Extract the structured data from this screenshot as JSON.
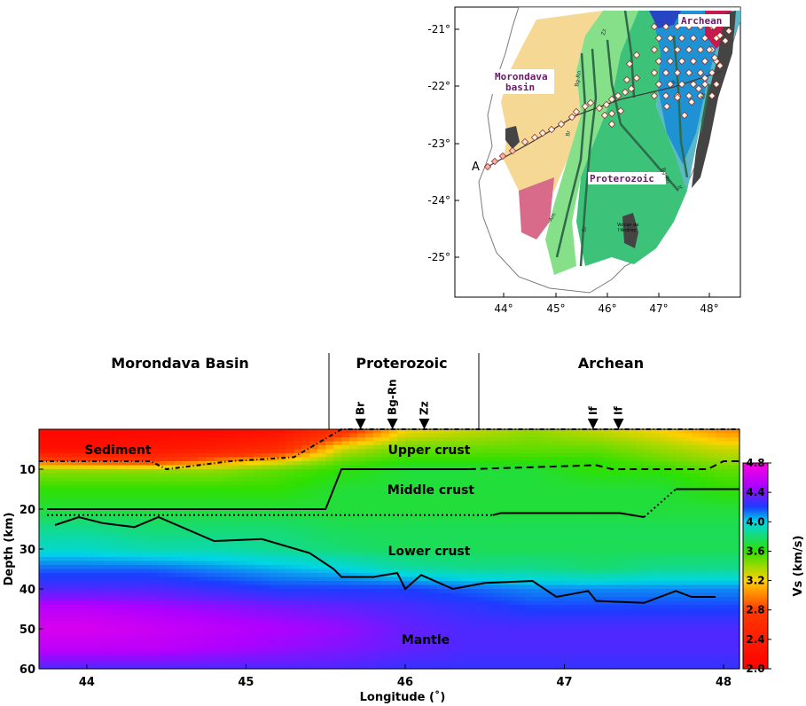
{
  "map": {
    "lat_ticks": [
      "-21°",
      "-22°",
      "-23°",
      "-24°",
      "-25°"
    ],
    "lon_ticks": [
      "44°",
      "45°",
      "46°",
      "47°",
      "48°"
    ],
    "labels": {
      "archean": "Archean",
      "morondava_1": "Morondava",
      "morondava_2": "basin",
      "proterozoic": "Proterozoic",
      "point_a": "A",
      "volcano_1": "Volcan de",
      "volcano_2": "l'Androy"
    },
    "fault_labels": [
      "Bg-Rn",
      "Zz",
      "Br",
      "If",
      "Zz",
      "Bg-Rn",
      "If",
      "Br",
      "Am"
    ]
  },
  "section": {
    "region_labels": [
      "Morondava Basin",
      "Proterozoic",
      "Archean"
    ],
    "fault_markers": [
      "Br",
      "Bg-Rn",
      "Zz",
      "If",
      "If"
    ],
    "layer_labels": {
      "sediment": "Sediment",
      "upper": "Upper crust",
      "middle": "Middle crust",
      "lower": "Lower crust",
      "mantle": "Mantle"
    }
  },
  "chart_data": {
    "type": "heatmap",
    "xlabel": "Longitude (˚)",
    "ylabel": "Depth (km)",
    "xlim": [
      43.7,
      48.1
    ],
    "ylim": [
      60,
      0
    ],
    "x_ticks": [
      "44",
      "45",
      "46",
      "47",
      "48"
    ],
    "y_ticks": [
      "10",
      "20",
      "30",
      "40",
      "50",
      "60"
    ],
    "colorbar": {
      "label": "Vs (km/s)",
      "range": [
        2.0,
        4.8
      ],
      "ticks": [
        "2.0",
        "2.4",
        "2.8",
        "3.2",
        "3.6",
        "4.0",
        "4.4",
        "4.8"
      ],
      "stops": [
        {
          "v": 2.0,
          "color": "#ff0000"
        },
        {
          "v": 2.8,
          "color": "#ff3a00"
        },
        {
          "v": 3.2,
          "color": "#ffd200"
        },
        {
          "v": 3.6,
          "color": "#2ee000"
        },
        {
          "v": 4.0,
          "color": "#00d6e6"
        },
        {
          "v": 4.2,
          "color": "#1b3dff"
        },
        {
          "v": 4.5,
          "color": "#b000ff"
        },
        {
          "v": 4.8,
          "color": "#ff00dd"
        }
      ]
    },
    "interfaces": {
      "sediment_base": [
        [
          43.7,
          8
        ],
        [
          44.4,
          8
        ],
        [
          44.5,
          10
        ],
        [
          44.9,
          8
        ],
        [
          45.3,
          7
        ],
        [
          45.6,
          0
        ],
        [
          48.1,
          0
        ]
      ],
      "upper_middle": [
        [
          43.75,
          20
        ],
        [
          45.5,
          20
        ],
        [
          45.6,
          10
        ],
        [
          46.4,
          10
        ],
        [
          47.2,
          9
        ],
        [
          47.3,
          10
        ],
        [
          47.9,
          10
        ],
        [
          48.0,
          8
        ],
        [
          48.1,
          8
        ]
      ],
      "middle_lower": [
        [
          43.75,
          21.5
        ],
        [
          46.55,
          21.5
        ],
        [
          46.6,
          21
        ],
        [
          47.35,
          21
        ],
        [
          47.5,
          22
        ],
        [
          47.7,
          15
        ],
        [
          48.1,
          15
        ]
      ],
      "moho": [
        [
          43.8,
          24
        ],
        [
          43.95,
          22
        ],
        [
          44.1,
          23.5
        ],
        [
          44.3,
          24.5
        ],
        [
          44.45,
          22
        ],
        [
          44.8,
          28
        ],
        [
          45.1,
          27.5
        ],
        [
          45.4,
          31
        ],
        [
          45.55,
          35
        ],
        [
          45.6,
          37
        ],
        [
          45.8,
          37
        ],
        [
          45.95,
          36
        ],
        [
          46.0,
          40
        ],
        [
          46.1,
          36.5
        ],
        [
          46.3,
          40
        ],
        [
          46.5,
          38.5
        ],
        [
          46.8,
          38
        ],
        [
          46.95,
          42
        ],
        [
          47.15,
          40.5
        ],
        [
          47.2,
          43
        ],
        [
          47.5,
          43.5
        ],
        [
          47.7,
          40.5
        ],
        [
          47.8,
          42
        ],
        [
          47.95,
          42
        ]
      ]
    },
    "profile": {
      "lon": [
        43.7,
        44.0,
        44.4,
        44.8,
        45.2,
        45.6,
        46.0,
        46.4,
        46.8,
        47.2,
        47.6,
        48.0
      ],
      "rows": [
        {
          "depth": 0,
          "vs": [
            2.1,
            2.1,
            2.1,
            2.1,
            2.2,
            2.6,
            3.2,
            3.3,
            3.4,
            3.3,
            3.2,
            3.0
          ]
        },
        {
          "depth": 5,
          "vs": [
            2.2,
            2.2,
            2.3,
            2.4,
            2.6,
            3.3,
            3.5,
            3.5,
            3.5,
            3.5,
            3.4,
            3.3
          ]
        },
        {
          "depth": 8,
          "vs": [
            2.9,
            2.8,
            2.7,
            3.0,
            3.2,
            3.5,
            3.6,
            3.6,
            3.6,
            3.6,
            3.5,
            3.4
          ]
        },
        {
          "depth": 10,
          "vs": [
            3.4,
            3.4,
            3.4,
            3.4,
            3.5,
            3.6,
            3.7,
            3.7,
            3.7,
            3.6,
            3.6,
            3.5
          ]
        },
        {
          "depth": 15,
          "vs": [
            3.6,
            3.6,
            3.6,
            3.6,
            3.6,
            3.7,
            3.7,
            3.7,
            3.7,
            3.7,
            3.7,
            3.6
          ]
        },
        {
          "depth": 20,
          "vs": [
            3.7,
            3.7,
            3.7,
            3.7,
            3.7,
            3.7,
            3.7,
            3.7,
            3.7,
            3.7,
            3.7,
            3.7
          ]
        },
        {
          "depth": 25,
          "vs": [
            3.85,
            3.85,
            3.8,
            3.8,
            3.8,
            3.75,
            3.75,
            3.75,
            3.75,
            3.75,
            3.75,
            3.75
          ]
        },
        {
          "depth": 30,
          "vs": [
            3.95,
            3.95,
            3.9,
            3.9,
            3.85,
            3.8,
            3.75,
            3.75,
            3.75,
            3.75,
            3.75,
            3.75
          ]
        },
        {
          "depth": 35,
          "vs": [
            4.15,
            4.15,
            4.15,
            4.1,
            4.05,
            4.0,
            3.9,
            3.85,
            3.85,
            3.8,
            3.85,
            3.85
          ]
        },
        {
          "depth": 40,
          "vs": [
            4.3,
            4.3,
            4.3,
            4.25,
            4.2,
            4.2,
            4.2,
            4.15,
            4.1,
            4.1,
            4.1,
            4.1
          ]
        },
        {
          "depth": 45,
          "vs": [
            4.55,
            4.55,
            4.5,
            4.45,
            4.4,
            4.35,
            4.3,
            4.25,
            4.2,
            4.2,
            4.2,
            4.2
          ]
        },
        {
          "depth": 50,
          "vs": [
            4.65,
            4.65,
            4.6,
            4.55,
            4.5,
            4.45,
            4.35,
            4.3,
            4.3,
            4.3,
            4.3,
            4.3
          ]
        },
        {
          "depth": 55,
          "vs": [
            4.55,
            4.55,
            4.55,
            4.5,
            4.45,
            4.4,
            4.35,
            4.3,
            4.3,
            4.3,
            4.3,
            4.3
          ]
        },
        {
          "depth": 60,
          "vs": [
            4.3,
            4.3,
            4.3,
            4.3,
            4.3,
            4.3,
            4.25,
            4.25,
            4.25,
            4.25,
            4.25,
            4.25
          ]
        }
      ]
    },
    "fault_positions_lon": [
      45.72,
      45.92,
      46.12,
      47.18,
      47.34
    ]
  }
}
